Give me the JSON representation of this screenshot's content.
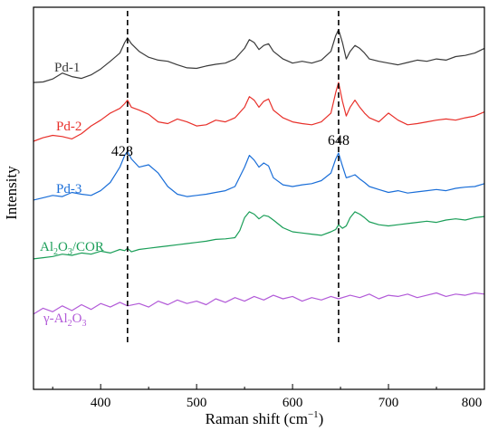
{
  "chart_data": {
    "type": "line",
    "xlabel": "Raman shift (cm",
    "xlabel_sup": "−1",
    "xlabel_close": ")",
    "ylabel": "Intensity",
    "xlim": [
      330,
      800
    ],
    "x_ticks": [
      "400",
      "500",
      "600",
      "700",
      "800"
    ],
    "y_ticks_shown": false,
    "reference_lines": [
      428,
      648
    ],
    "annotations": [
      "428",
      "648"
    ],
    "series": [
      {
        "name": "Pd-1",
        "color": "#3a3a3a",
        "x": [
          330,
          340,
          350,
          360,
          370,
          380,
          390,
          400,
          410,
          420,
          425,
          428,
          432,
          440,
          450,
          460,
          470,
          480,
          490,
          500,
          510,
          520,
          530,
          540,
          550,
          555,
          560,
          565,
          570,
          575,
          580,
          590,
          600,
          610,
          620,
          630,
          640,
          645,
          648,
          652,
          656,
          660,
          665,
          670,
          675,
          680,
          690,
          700,
          710,
          720,
          730,
          740,
          750,
          760,
          770,
          780,
          790,
          800
        ],
        "values": [
          3.72,
          3.73,
          3.78,
          3.88,
          3.82,
          3.79,
          3.85,
          3.95,
          4.08,
          4.22,
          4.4,
          4.48,
          4.38,
          4.25,
          4.15,
          4.1,
          4.08,
          4.02,
          3.97,
          3.96,
          4.0,
          4.03,
          4.05,
          4.12,
          4.3,
          4.45,
          4.4,
          4.28,
          4.35,
          4.38,
          4.25,
          4.12,
          4.05,
          4.08,
          4.05,
          4.1,
          4.25,
          4.52,
          4.62,
          4.4,
          4.12,
          4.25,
          4.35,
          4.3,
          4.22,
          4.12,
          4.08,
          4.05,
          4.02,
          4.06,
          4.1,
          4.08,
          4.12,
          4.1,
          4.16,
          4.18,
          4.22,
          4.3
        ]
      },
      {
        "name": "Pd-2",
        "color": "#e8302a",
        "x": [
          330,
          340,
          350,
          360,
          370,
          380,
          390,
          400,
          410,
          420,
          425,
          428,
          432,
          440,
          450,
          460,
          470,
          480,
          490,
          500,
          510,
          520,
          530,
          540,
          550,
          555,
          560,
          565,
          570,
          575,
          580,
          590,
          600,
          610,
          620,
          630,
          640,
          645,
          648,
          652,
          656,
          660,
          665,
          670,
          675,
          680,
          690,
          700,
          710,
          720,
          730,
          740,
          750,
          760,
          770,
          780,
          790,
          800
        ],
        "values": [
          2.72,
          2.78,
          2.82,
          2.8,
          2.76,
          2.85,
          2.98,
          3.08,
          3.2,
          3.28,
          3.36,
          3.42,
          3.3,
          3.25,
          3.18,
          3.05,
          3.02,
          3.1,
          3.05,
          2.98,
          3.0,
          3.08,
          3.05,
          3.12,
          3.3,
          3.48,
          3.42,
          3.3,
          3.4,
          3.44,
          3.25,
          3.12,
          3.05,
          3.02,
          3.0,
          3.05,
          3.2,
          3.55,
          3.72,
          3.4,
          3.15,
          3.3,
          3.42,
          3.3,
          3.2,
          3.12,
          3.05,
          3.2,
          3.08,
          3.0,
          3.02,
          3.05,
          3.08,
          3.1,
          3.08,
          3.12,
          3.15,
          3.22
        ]
      },
      {
        "name": "Pd-3",
        "color": "#1a6ed8",
        "x": [
          330,
          340,
          350,
          360,
          370,
          380,
          390,
          400,
          410,
          420,
          425,
          428,
          432,
          440,
          450,
          460,
          470,
          480,
          490,
          500,
          510,
          520,
          530,
          540,
          550,
          555,
          560,
          565,
          570,
          575,
          580,
          590,
          600,
          610,
          620,
          630,
          640,
          645,
          648,
          652,
          656,
          660,
          665,
          670,
          675,
          680,
          690,
          700,
          710,
          720,
          730,
          740,
          750,
          760,
          770,
          780,
          790,
          800
        ],
        "values": [
          1.72,
          1.76,
          1.8,
          1.78,
          1.85,
          1.82,
          1.8,
          1.88,
          2.02,
          2.28,
          2.48,
          2.55,
          2.42,
          2.28,
          2.32,
          2.18,
          1.95,
          1.82,
          1.78,
          1.8,
          1.82,
          1.85,
          1.88,
          1.95,
          2.28,
          2.48,
          2.4,
          2.28,
          2.35,
          2.3,
          2.1,
          1.98,
          1.95,
          1.98,
          2.0,
          2.05,
          2.18,
          2.42,
          2.52,
          2.3,
          2.1,
          2.12,
          2.15,
          2.08,
          2.02,
          1.95,
          1.9,
          1.85,
          1.88,
          1.84,
          1.86,
          1.88,
          1.9,
          1.88,
          1.92,
          1.94,
          1.95,
          2.0
        ]
      },
      {
        "name": "Al",
        "name_sub1": "2",
        "name_mid": "O",
        "name_sub2": "3",
        "name_tail": "/COR",
        "color": "#1a9e58",
        "x": [
          330,
          340,
          350,
          360,
          370,
          380,
          390,
          400,
          410,
          420,
          425,
          428,
          432,
          440,
          450,
          460,
          470,
          480,
          490,
          500,
          510,
          520,
          530,
          540,
          545,
          550,
          555,
          560,
          565,
          570,
          575,
          580,
          590,
          600,
          610,
          620,
          630,
          640,
          645,
          648,
          652,
          656,
          660,
          665,
          670,
          675,
          680,
          690,
          700,
          710,
          720,
          730,
          740,
          750,
          760,
          770,
          780,
          790,
          800
        ],
        "values": [
          0.72,
          0.74,
          0.76,
          0.8,
          0.78,
          0.82,
          0.8,
          0.85,
          0.82,
          0.88,
          0.86,
          0.9,
          0.84,
          0.88,
          0.9,
          0.92,
          0.94,
          0.96,
          0.98,
          1.0,
          1.02,
          1.05,
          1.06,
          1.08,
          1.2,
          1.42,
          1.52,
          1.48,
          1.4,
          1.46,
          1.44,
          1.38,
          1.25,
          1.18,
          1.16,
          1.14,
          1.12,
          1.18,
          1.22,
          1.3,
          1.24,
          1.28,
          1.42,
          1.52,
          1.48,
          1.42,
          1.35,
          1.3,
          1.28,
          1.3,
          1.32,
          1.34,
          1.36,
          1.34,
          1.38,
          1.4,
          1.38,
          1.42,
          1.44
        ]
      },
      {
        "name": "γ-Al",
        "name_sub1": "2",
        "name_mid": "O",
        "name_sub2": "3",
        "name_tail": "",
        "color": "#b25ad8",
        "x": [
          330,
          340,
          350,
          360,
          370,
          380,
          390,
          400,
          410,
          420,
          428,
          440,
          450,
          460,
          470,
          480,
          490,
          500,
          510,
          520,
          530,
          540,
          550,
          560,
          570,
          580,
          590,
          600,
          610,
          620,
          630,
          640,
          648,
          660,
          670,
          680,
          690,
          700,
          710,
          720,
          730,
          740,
          750,
          760,
          770,
          780,
          790,
          800
        ],
        "values": [
          -0.22,
          -0.12,
          -0.18,
          -0.08,
          -0.16,
          -0.06,
          -0.14,
          -0.04,
          -0.1,
          -0.02,
          -0.08,
          -0.04,
          -0.1,
          0.0,
          -0.06,
          0.02,
          -0.04,
          0.0,
          -0.06,
          0.04,
          -0.02,
          0.06,
          0.0,
          0.08,
          0.02,
          0.1,
          0.04,
          0.08,
          0.0,
          0.06,
          0.02,
          0.08,
          0.04,
          0.1,
          0.06,
          0.12,
          0.04,
          0.1,
          0.08,
          0.12,
          0.06,
          0.1,
          0.14,
          0.08,
          0.12,
          0.1,
          0.14,
          0.12
        ]
      }
    ]
  }
}
